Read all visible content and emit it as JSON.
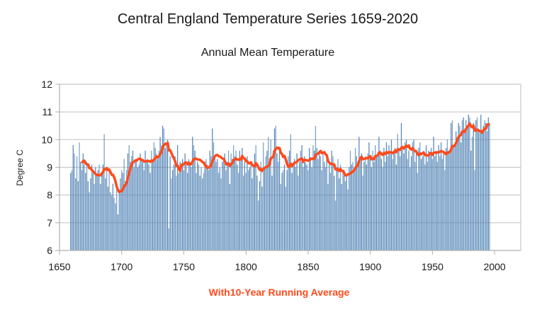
{
  "chart_data": {
    "type": "bar",
    "title": "Central England Temperature Series 1659-2020",
    "subtitle": "Annual Mean Temperature",
    "xlabel": "With10-Year Running Average",
    "ylabel": "Degree C",
    "xlim": [
      1650,
      2021
    ],
    "ylim": [
      6,
      12
    ],
    "xticks": [
      1650,
      1700,
      1750,
      1800,
      1850,
      1900,
      1950,
      2000
    ],
    "yticks": [
      6,
      7,
      8,
      9,
      10,
      11,
      12
    ],
    "grid": true,
    "legend": "none",
    "colors": {
      "bars": "#4f81b4",
      "running_average": "#ff4a1c",
      "grid": "#c8c8c8"
    },
    "start_year": 1659,
    "end_year": 2020,
    "running_average_window": 10,
    "series": [
      {
        "name": "Annual Mean Temperature",
        "type": "bar",
        "values": [
          8.8,
          8.9,
          9.8,
          9.5,
          8.6,
          9.4,
          8.5,
          9.9,
          9.2,
          8.9,
          9.5,
          9.1,
          8.8,
          9.2,
          8.5,
          8.1,
          8.6,
          9.1,
          8.8,
          8.4,
          9.0,
          8.7,
          8.9,
          9.1,
          8.4,
          8.8,
          9.1,
          10.2,
          8.6,
          8.9,
          8.3,
          8.9,
          8.1,
          8.0,
          8.4,
          7.9,
          7.7,
          8.3,
          7.3,
          8.2,
          8.6,
          8.9,
          8.8,
          9.3,
          8.5,
          8.9,
          9.5,
          9.8,
          9.2,
          9.4,
          9.6,
          9.0,
          9.3,
          9.2,
          9.0,
          9.1,
          9.5,
          9.3,
          9.2,
          8.9,
          9.6,
          9.2,
          9.3,
          9.1,
          8.8,
          9.6,
          9.2,
          9.9,
          9.7,
          9.5,
          9.3,
          9.6,
          10.1,
          9.8,
          10.5,
          10.4,
          9.7,
          9.9,
          10.0,
          6.8,
          9.4,
          8.6,
          8.9,
          9.1,
          9.4,
          8.7,
          9.8,
          8.8,
          9.2,
          9.0,
          9.3,
          8.9,
          9.5,
          9.1,
          8.8,
          9.3,
          9.1,
          9.0,
          10.1,
          9.8,
          9.6,
          8.8,
          9.2,
          9.1,
          8.7,
          9.0,
          8.6,
          8.8,
          9.2,
          9.3,
          9.1,
          8.9,
          9.6,
          9.4,
          10.4,
          9.9,
          9.4,
          9.2,
          9.3,
          8.8,
          9.0,
          8.6,
          9.2,
          9.3,
          9.5,
          8.9,
          9.2,
          9.6,
          8.4,
          9.5,
          9.3,
          9.8,
          9.4,
          9.6,
          9.1,
          8.8,
          9.6,
          9.3,
          9.7,
          8.7,
          9.2,
          8.8,
          9.4,
          8.9,
          9.0,
          9.2,
          8.6,
          9.1,
          9.5,
          9.8,
          8.7,
          7.8,
          8.5,
          9.2,
          8.3,
          9.9,
          9.0,
          9.4,
          9.6,
          10.1,
          9.3,
          10.0,
          8.7,
          9.6,
          10.4,
          10.5,
          9.5,
          9.2,
          9.7,
          8.4,
          8.8,
          8.9,
          9.1,
          8.3,
          8.9,
          9.4,
          9.6,
          10.2,
          8.8,
          9.1,
          9.3,
          9.0,
          9.5,
          8.7,
          9.2,
          9.6,
          9.8,
          9.0,
          9.4,
          9.2,
          9.1,
          8.9,
          9.7,
          9.3,
          9.0,
          9.8,
          9.6,
          10.5,
          9.7,
          9.3,
          9.6,
          9.4,
          8.9,
          9.5,
          9.2,
          9.0,
          9.3,
          8.4,
          9.1,
          8.8,
          9.6,
          9.4,
          8.7,
          7.8,
          9.0,
          9.3,
          8.6,
          9.1,
          8.4,
          8.8,
          8.9,
          8.5,
          8.7,
          8.2,
          9.0,
          9.6,
          9.1,
          9.2,
          8.9,
          9.7,
          9.4,
          9.0,
          10.1,
          9.3,
          9.5,
          8.7,
          9.2,
          9.4,
          9.1,
          9.5,
          9.9,
          9.3,
          9.0,
          9.6,
          9.2,
          9.8,
          9.4,
          9.5,
          10.1,
          9.6,
          9.3,
          9.0,
          9.7,
          9.2,
          9.9,
          9.4,
          9.8,
          9.5,
          10.0,
          9.3,
          9.6,
          9.7,
          9.1,
          10.2,
          9.7,
          9.4,
          10.6,
          9.7,
          9.5,
          9.9,
          10.0,
          9.3,
          9.6,
          9.0,
          9.4,
          9.9,
          10.0,
          9.2,
          9.5,
          8.8,
          9.7,
          9.9,
          9.3,
          9.4,
          9.6,
          9.1,
          9.8,
          9.2,
          9.6,
          9.5,
          9.7,
          9.3,
          10.1,
          9.4,
          9.6,
          9.2,
          9.8,
          9.4,
          9.9,
          9.3,
          9.5,
          8.9,
          9.7,
          10.0,
          9.6,
          9.5,
          10.6,
          10.7,
          9.7,
          9.8,
          10.3,
          10.1,
          10.6,
          10.5,
          9.9,
          10.7,
          10.8,
          10.4,
          10.7,
          10.5,
          10.9,
          10.8,
          9.6,
          10.1,
          10.6,
          8.9,
          10.7,
          10.8,
          10.4,
          10.3,
          10.9,
          10.2,
          10.5,
          10.7,
          10.6,
          10.3,
          10.8,
          10.6
        ]
      },
      {
        "name": "10-Year Running Average",
        "type": "line"
      }
    ]
  }
}
